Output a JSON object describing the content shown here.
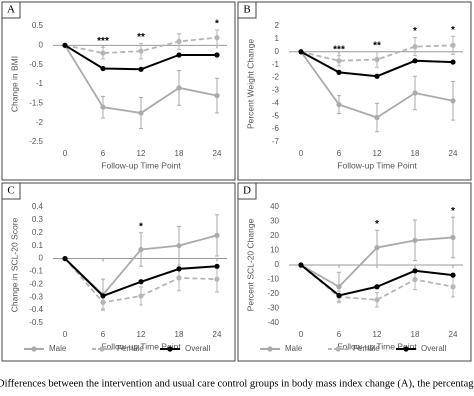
{
  "chart_data": [
    {
      "type": "line",
      "panel": "A",
      "y_label": "Change in BMI",
      "x_label": "Follow-up Time Point",
      "x": [
        0,
        6,
        12,
        18,
        24
      ],
      "xlim": [
        0,
        24
      ],
      "xticks": [
        0,
        6,
        12,
        18,
        24
      ],
      "ylim": [
        -2.5,
        0.5
      ],
      "yticks": [
        0.5,
        0,
        -0.5,
        -1,
        -1.5,
        -2,
        -2.5
      ],
      "series": [
        {
          "name": "Male",
          "color": "#aaaaaa",
          "dash": false,
          "values": [
            0,
            -1.6,
            -1.75,
            -1.1,
            -1.3
          ],
          "errors": [
            0,
            0.28,
            0.4,
            0.45,
            0.45
          ]
        },
        {
          "name": "Female",
          "color": "#b5b5b5",
          "dash": true,
          "values": [
            0,
            -0.2,
            -0.15,
            0.1,
            0.2
          ],
          "errors": [
            0,
            0.15,
            0.2,
            0.2,
            0.2
          ]
        },
        {
          "name": "Overall",
          "color": "#000000",
          "dash": false,
          "values": [
            0,
            -0.6,
            -0.62,
            -0.25,
            -0.25
          ],
          "errors": [
            0,
            0,
            0,
            0,
            0
          ]
        }
      ],
      "annotations": [
        {
          "x": 6,
          "text": "***"
        },
        {
          "x": 12,
          "text": "**"
        },
        {
          "x": 24,
          "text": "*"
        }
      ]
    },
    {
      "type": "line",
      "panel": "B",
      "y_label": "Percent Weight Change",
      "x_label": "Follow-up Time Point",
      "x": [
        0,
        6,
        12,
        18,
        24
      ],
      "xlim": [
        0,
        24
      ],
      "xticks": [
        0,
        6,
        12,
        18,
        24
      ],
      "ylim": [
        -7,
        2
      ],
      "yticks": [
        2,
        1,
        0,
        -1,
        -2,
        -3,
        -4,
        -5,
        -6,
        -7
      ],
      "series": [
        {
          "name": "Male",
          "color": "#aaaaaa",
          "dash": false,
          "values": [
            0,
            -4.1,
            -5.1,
            -3.2,
            -3.8
          ],
          "errors": [
            0,
            0.7,
            1.1,
            1.3,
            1.5
          ]
        },
        {
          "name": "Female",
          "color": "#b5b5b5",
          "dash": true,
          "values": [
            0,
            -0.7,
            -0.6,
            0.4,
            0.5
          ],
          "errors": [
            0,
            0.4,
            0.6,
            0.7,
            0.7
          ]
        },
        {
          "name": "Overall",
          "color": "#000000",
          "dash": false,
          "values": [
            0,
            -1.6,
            -1.9,
            -0.7,
            -0.8
          ],
          "errors": [
            0,
            0,
            0,
            0,
            0
          ]
        }
      ],
      "annotations": [
        {
          "x": 6,
          "text": "***"
        },
        {
          "x": 12,
          "text": "**"
        },
        {
          "x": 18,
          "text": "*"
        },
        {
          "x": 24,
          "text": "*"
        }
      ]
    },
    {
      "type": "line",
      "panel": "C",
      "y_label": "Change in SCL-20 Score",
      "x_label": "Follow-up Time Point",
      "x": [
        0,
        6,
        12,
        18,
        24
      ],
      "xlim": [
        0,
        24
      ],
      "xticks": [
        0,
        6,
        12,
        18,
        24
      ],
      "ylim": [
        -0.5,
        0.4
      ],
      "yticks": [
        0.4,
        0.3,
        0.2,
        0.1,
        0,
        -0.1,
        -0.2,
        -0.3,
        -0.4,
        -0.5
      ],
      "series": [
        {
          "name": "Male",
          "color": "#aaaaaa",
          "dash": false,
          "values": [
            0,
            -0.28,
            0.07,
            0.1,
            0.18
          ],
          "errors": [
            0,
            0.12,
            0.13,
            0.15,
            0.16
          ]
        },
        {
          "name": "Female",
          "color": "#b5b5b5",
          "dash": true,
          "values": [
            0,
            -0.34,
            -0.29,
            -0.15,
            -0.16
          ],
          "errors": [
            0,
            0.05,
            0.07,
            0.1,
            0.1
          ]
        },
        {
          "name": "Overall",
          "color": "#000000",
          "dash": false,
          "values": [
            0,
            -0.29,
            -0.18,
            -0.08,
            -0.06
          ],
          "errors": [
            0,
            0,
            0,
            0,
            0
          ]
        }
      ],
      "annotations": [
        {
          "x": 12,
          "text": "*"
        }
      ],
      "legend": "bottom"
    },
    {
      "type": "line",
      "panel": "D",
      "y_label": "Percent SCL-20 Change",
      "x_label": "Follow-up Time Point",
      "x": [
        0,
        6,
        12,
        18,
        24
      ],
      "xlim": [
        0,
        24
      ],
      "xticks": [
        0,
        6,
        12,
        18,
        24
      ],
      "ylim": [
        -40,
        40
      ],
      "yticks": [
        40,
        30,
        20,
        10,
        0,
        -10,
        -20,
        -30,
        -40
      ],
      "series": [
        {
          "name": "Male",
          "color": "#aaaaaa",
          "dash": false,
          "values": [
            0,
            -15,
            12,
            17,
            19
          ],
          "errors": [
            0,
            10,
            12,
            14,
            14
          ]
        },
        {
          "name": "Female",
          "color": "#b5b5b5",
          "dash": true,
          "values": [
            0,
            -22,
            -24,
            -10,
            -15
          ],
          "errors": [
            0,
            4,
            5,
            7,
            7
          ]
        },
        {
          "name": "Overall",
          "color": "#000000",
          "dash": false,
          "values": [
            0,
            -21,
            -15,
            -4,
            -7
          ],
          "errors": [
            0,
            0,
            0,
            0,
            0
          ]
        }
      ],
      "annotations": [
        {
          "x": 12,
          "text": "*"
        },
        {
          "x": 24,
          "text": "*"
        }
      ],
      "legend": "bottom"
    }
  ],
  "caption": "Differences between the intervention and usual care control groups in body mass index change (A), the percentage of weigh"
}
